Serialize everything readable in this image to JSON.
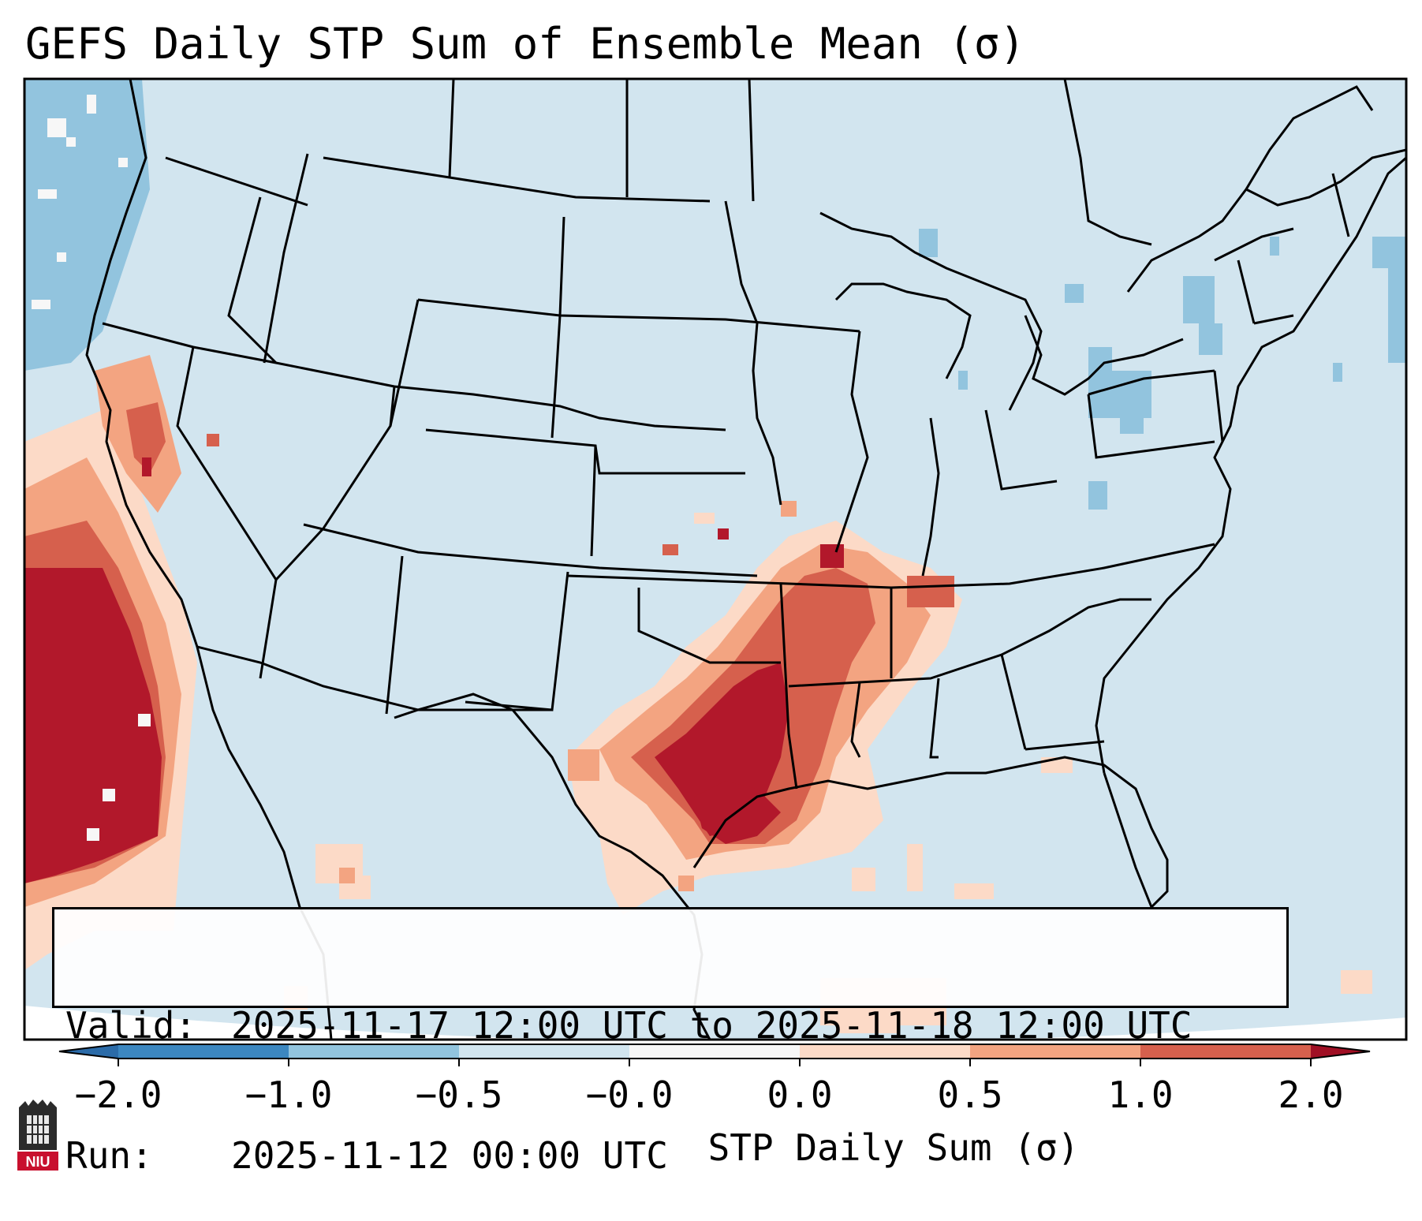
{
  "title": "GEFS Daily STP Sum of Ensemble Mean (σ)",
  "legend": {
    "valid_label": "Valid:",
    "valid_value": "2025-11-17 12:00 UTC to 2025-11-18 12:00 UTC",
    "run_label": "Run:",
    "run_value": "2025-11-12 00:00 UTC"
  },
  "colorbar": {
    "label": "STP Daily Sum (σ)",
    "ticks": [
      "−2.0",
      "−1.0",
      "−0.5",
      "−0.0",
      "0.0",
      "0.5",
      "1.0",
      "2.0"
    ],
    "colors": [
      "#3c87c0",
      "#92c4de",
      "#d2e5ef",
      "#f7f7f7",
      "#fcdac7",
      "#f3a481",
      "#d6604d",
      "#b2182b"
    ],
    "min_color": "#2b6ba8",
    "max_color": "#a00f24"
  },
  "map": {
    "background_color": "#d2e5ef",
    "border_color": "#000000",
    "highlight_regions": [
      {
        "name": "Southern Plains / Lower Mississippi Valley",
        "category": "1.0 to 2.0"
      },
      {
        "name": "Pacific off California coast",
        "category": "1.0 to 2.0"
      },
      {
        "name": "Northeast US",
        "category": "-1.0 to -0.5"
      },
      {
        "name": "Pacific Northwest offshore",
        "category": "-1.0 to -0.5"
      }
    ]
  },
  "logo": {
    "text": "NIU"
  }
}
